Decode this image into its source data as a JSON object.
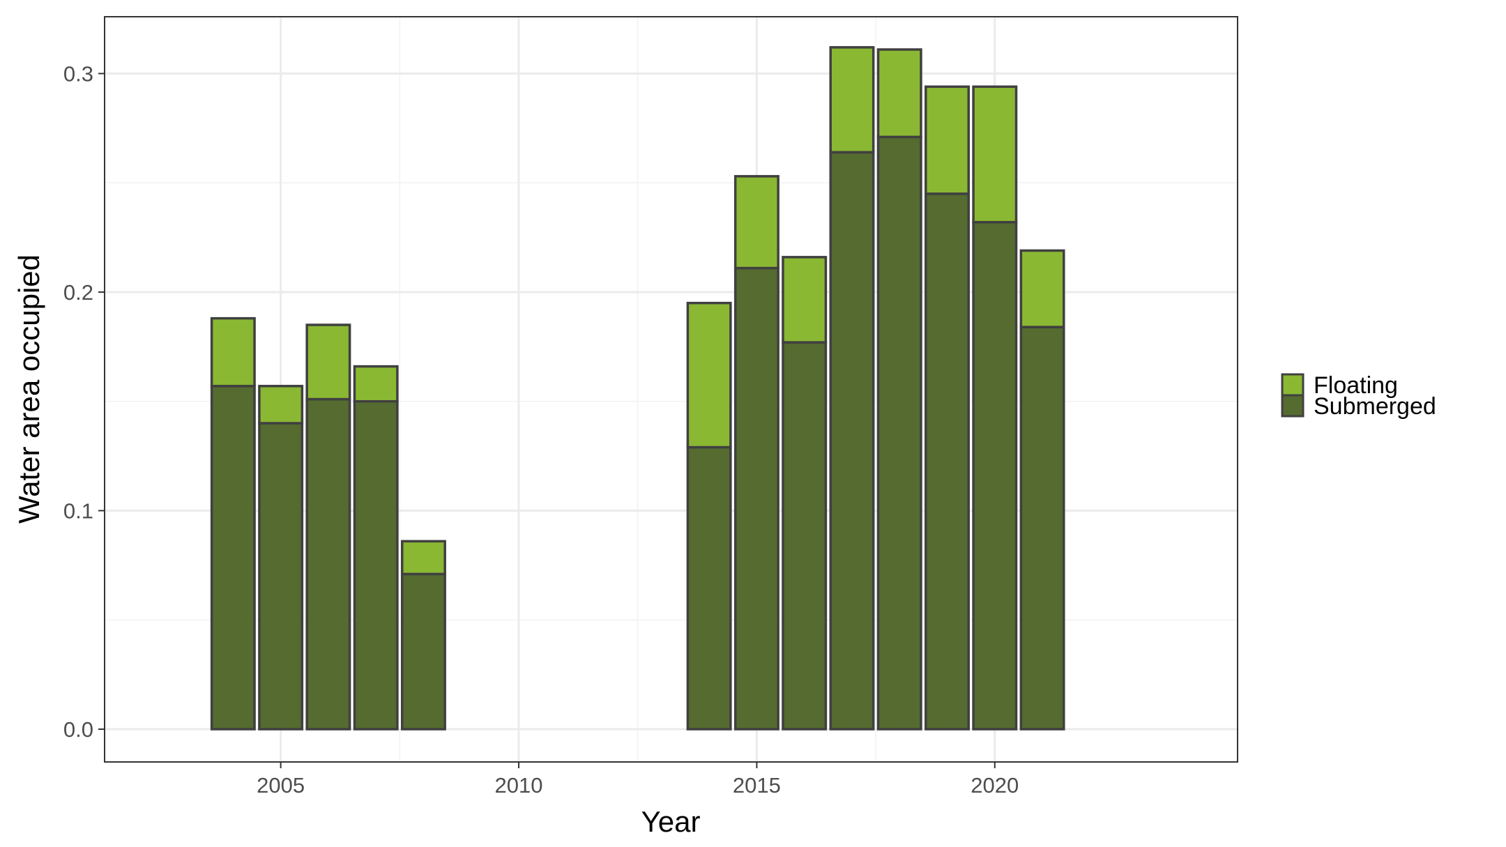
{
  "chart_data": {
    "type": "bar",
    "stacked": true,
    "xlabel": "Year",
    "ylabel": "Water area occupied",
    "xlim": [
      2001.3,
      2025.1
    ],
    "ylim": [
      -0.015,
      0.326
    ],
    "x_ticks": [
      2005,
      2010,
      2015,
      2020
    ],
    "y_ticks": [
      0.0,
      0.1,
      0.2,
      0.3
    ],
    "x_tick_labels": [
      "2005",
      "2010",
      "2015",
      "2020"
    ],
    "y_tick_labels": [
      "0.0",
      "0.1",
      "0.2",
      "0.3"
    ],
    "grid": true,
    "legend_position": "right",
    "x": [
      2004,
      2005,
      2006,
      2007,
      2008,
      2014,
      2015,
      2016,
      2017,
      2018,
      2019,
      2020,
      2021
    ],
    "series": [
      {
        "name": "Submerged",
        "color": "#556b2f",
        "values": [
          0.157,
          0.14,
          0.151,
          0.15,
          0.071,
          0.129,
          0.211,
          0.177,
          0.264,
          0.271,
          0.245,
          0.232,
          0.184
        ]
      },
      {
        "name": "Floating",
        "color": "#8ab833",
        "values": [
          0.031,
          0.017,
          0.034,
          0.016,
          0.015,
          0.066,
          0.042,
          0.039,
          0.048,
          0.04,
          0.049,
          0.062,
          0.035
        ]
      }
    ],
    "legend": [
      {
        "label": "Floating",
        "color": "#8ab833"
      },
      {
        "label": "Submerged",
        "color": "#556b2f"
      }
    ]
  }
}
